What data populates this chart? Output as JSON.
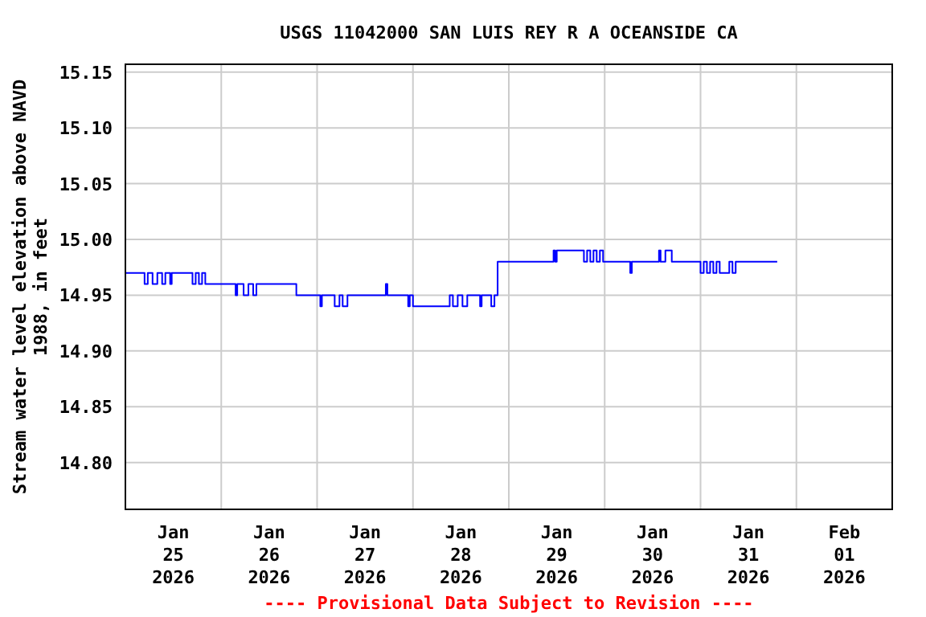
{
  "chart_data": {
    "type": "step",
    "title": "USGS 11042000 SAN LUIS REY R A OCEANSIDE CA",
    "ylabel": "Stream water level elevation above NAVD\n1988, in feet",
    "annotations": [
      "---- Provisional Data Subject to Revision ----"
    ],
    "xlim": [
      "2026-01-25T00:00",
      "2026-02-02T00:00"
    ],
    "ylim": [
      14.758,
      15.157
    ],
    "xticks": [
      {
        "value": "2026-01-25T12:00",
        "label": "Jan\n25\n2026"
      },
      {
        "value": "2026-01-26T12:00",
        "label": "Jan\n26\n2026"
      },
      {
        "value": "2026-01-27T12:00",
        "label": "Jan\n27\n2026"
      },
      {
        "value": "2026-01-28T12:00",
        "label": "Jan\n28\n2026"
      },
      {
        "value": "2026-01-29T12:00",
        "label": "Jan\n29\n2026"
      },
      {
        "value": "2026-01-30T12:00",
        "label": "Jan\n30\n2026"
      },
      {
        "value": "2026-01-31T12:00",
        "label": "Jan\n31\n2026"
      },
      {
        "value": "2026-02-01T12:00",
        "label": "Feb\n01\n2026"
      },
      {
        "value": "2026-01-26T00:00",
        "label": null
      },
      {
        "value": "2026-01-27T00:00",
        "label": null
      },
      {
        "value": "2026-01-28T00:00",
        "label": null
      },
      {
        "value": "2026-01-29T00:00",
        "label": null
      },
      {
        "value": "2026-01-30T00:00",
        "label": null
      },
      {
        "value": "2026-01-31T00:00",
        "label": null
      },
      {
        "value": "2026-02-01T00:00",
        "label": null
      }
    ],
    "yticks": [
      {
        "value": 14.8,
        "label": "14.80"
      },
      {
        "value": 14.85,
        "label": "14.85"
      },
      {
        "value": 14.9,
        "label": "14.90"
      },
      {
        "value": 14.95,
        "label": "14.95"
      },
      {
        "value": 15.0,
        "label": "15.00"
      },
      {
        "value": 15.05,
        "label": "15.05"
      },
      {
        "value": 15.1,
        "label": "15.10"
      },
      {
        "value": 15.15,
        "label": "15.15"
      }
    ],
    "grid": true,
    "series": [
      {
        "color": "#0000ff",
        "x": [
          "2026-01-25T00:00",
          "2026-01-25T04:48",
          "2026-01-25T05:36",
          "2026-01-25T06:48",
          "2026-01-25T08:00",
          "2026-01-25T09:12",
          "2026-01-25T10:00",
          "2026-01-25T11:12",
          "2026-01-25T11:36",
          "2026-01-25T16:48",
          "2026-01-25T17:36",
          "2026-01-25T18:24",
          "2026-01-25T19:12",
          "2026-01-25T20:00",
          "2026-01-26T03:36",
          "2026-01-26T04:00",
          "2026-01-26T05:36",
          "2026-01-26T06:48",
          "2026-01-26T08:00",
          "2026-01-26T08:48",
          "2026-01-26T18:48",
          "2026-01-27T00:48",
          "2026-01-27T01:12",
          "2026-01-27T04:24",
          "2026-01-27T05:36",
          "2026-01-27T06:24",
          "2026-01-27T07:36",
          "2026-01-27T17:12",
          "2026-01-27T17:36",
          "2026-01-27T22:48",
          "2026-01-27T23:12",
          "2026-01-28T00:00",
          "2026-01-28T09:12",
          "2026-01-28T10:00",
          "2026-01-28T11:12",
          "2026-01-28T12:24",
          "2026-01-28T13:36",
          "2026-01-28T16:48",
          "2026-01-28T17:12",
          "2026-01-28T19:36",
          "2026-01-28T20:24",
          "2026-01-28T21:12",
          "2026-01-29T11:12",
          "2026-01-29T11:36",
          "2026-01-29T12:00",
          "2026-01-29T18:48",
          "2026-01-29T19:36",
          "2026-01-29T20:24",
          "2026-01-29T21:12",
          "2026-01-29T22:00",
          "2026-01-29T22:48",
          "2026-01-29T23:36",
          "2026-01-30T06:24",
          "2026-01-30T06:48",
          "2026-01-30T13:36",
          "2026-01-30T14:00",
          "2026-01-30T15:12",
          "2026-01-30T16:48",
          "2026-01-31T00:00",
          "2026-01-31T00:48",
          "2026-01-31T01:36",
          "2026-01-31T02:24",
          "2026-01-31T03:12",
          "2026-01-31T04:00",
          "2026-01-31T04:48",
          "2026-01-31T07:12",
          "2026-01-31T08:00",
          "2026-01-31T08:48",
          "2026-01-31T19:12"
        ],
        "values": [
          14.97,
          14.96,
          14.97,
          14.96,
          14.97,
          14.96,
          14.97,
          14.96,
          14.97,
          14.96,
          14.97,
          14.96,
          14.97,
          14.96,
          14.95,
          14.96,
          14.95,
          14.96,
          14.95,
          14.96,
          14.95,
          14.94,
          14.95,
          14.94,
          14.95,
          14.94,
          14.95,
          14.96,
          14.95,
          14.94,
          14.95,
          14.94,
          14.95,
          14.94,
          14.95,
          14.94,
          14.95,
          14.94,
          14.95,
          14.94,
          14.95,
          14.98,
          14.99,
          14.98,
          14.99,
          14.98,
          14.99,
          14.98,
          14.99,
          14.98,
          14.99,
          14.98,
          14.97,
          14.98,
          14.99,
          14.98,
          14.99,
          14.98,
          14.97,
          14.98,
          14.97,
          14.98,
          14.97,
          14.98,
          14.97,
          14.98,
          14.97,
          14.98,
          14.98
        ]
      }
    ]
  }
}
